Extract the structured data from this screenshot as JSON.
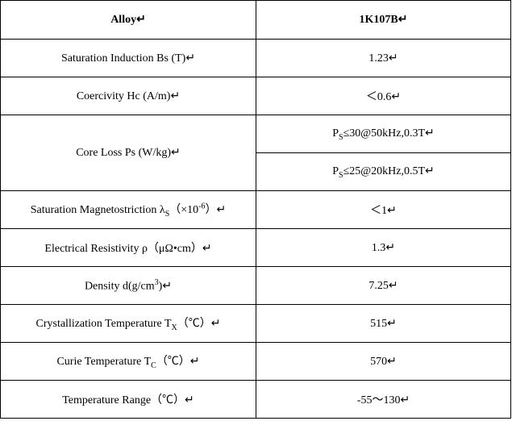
{
  "table": {
    "header": [
      [
        "Alloy↵"
      ],
      [
        "1K107B↵"
      ]
    ],
    "rows": [
      {
        "property": [
          "Saturation Induction Bs (T)↵"
        ],
        "values": [
          [
            "1.23↵"
          ]
        ]
      },
      {
        "property": [
          "Coercivity Hc (A/m)↵"
        ],
        "values": [
          [
            "＜0.6↵"
          ]
        ]
      },
      {
        "property": [
          "Core Loss Ps (W/kg)↵"
        ],
        "values": [
          [
            "P",
            {
              "sub": "S"
            },
            "≤30@50kHz,0.3T↵"
          ],
          [
            "P",
            {
              "sub": "S"
            },
            "≤25@20kHz,0.5T↵"
          ]
        ]
      },
      {
        "property": [
          "Saturation Magnetostriction λ",
          {
            "sub": "S"
          },
          "（×10",
          {
            "sup": "-6"
          },
          "）↵"
        ],
        "values": [
          [
            "＜1↵"
          ]
        ]
      },
      {
        "property": [
          "Electrical Resistivity ρ（μΩ•cm）↵"
        ],
        "values": [
          [
            "1.3↵"
          ]
        ]
      },
      {
        "property": [
          "Density d(g/cm",
          {
            "sup": "3"
          },
          ")↵"
        ],
        "values": [
          [
            "7.25↵"
          ]
        ]
      },
      {
        "property": [
          "Crystallization Temperature T",
          {
            "sub": "X"
          },
          "（℃）↵"
        ],
        "values": [
          [
            "515↵"
          ]
        ]
      },
      {
        "property": [
          "Curie Temperature T",
          {
            "sub": "C"
          },
          "（℃）↵"
        ],
        "values": [
          [
            "570↵"
          ]
        ]
      },
      {
        "property": [
          "Temperature Range（℃）↵"
        ],
        "values": [
          [
            "-55～130↵"
          ]
        ]
      }
    ]
  }
}
